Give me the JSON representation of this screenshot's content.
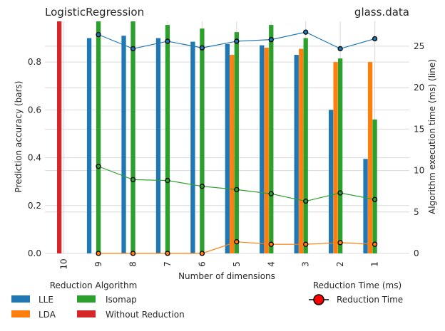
{
  "chart_data": {
    "type": "bar",
    "title_left": "LogisticRegression",
    "title_right": "glass.data",
    "xlabel": "Number of dimensions",
    "ylabel": "Prediction accuracy (bars)",
    "y2label": "Algorithm execution time (ms) (line)",
    "categories": [
      "10",
      "9",
      "8",
      "7",
      "6",
      "5",
      "4",
      "3",
      "2",
      "1"
    ],
    "ylim": [
      0,
      0.97
    ],
    "yticks": [
      "0.0",
      "0.2",
      "0.4",
      "0.6",
      "0.8"
    ],
    "yticks_values": [
      0,
      0.2,
      0.4,
      0.6,
      0.8
    ],
    "y2lim": [
      0,
      28
    ],
    "y2ticks": [
      "0",
      "5",
      "10",
      "15",
      "20",
      "25"
    ],
    "y2ticks_values": [
      0,
      5,
      10,
      15,
      20,
      25
    ],
    "grid": true,
    "series": [
      {
        "name": "LLE",
        "color": "#1f77b4",
        "values": [
          null,
          0.9,
          0.91,
          0.9,
          0.885,
          0.875,
          0.87,
          0.83,
          0.6,
          0.395
        ]
      },
      {
        "name": "LDA",
        "color": "#ff7f0e",
        "values": [
          null,
          null,
          null,
          null,
          null,
          0.83,
          0.86,
          0.855,
          0.8,
          0.8
        ]
      },
      {
        "name": "Isomap",
        "color": "#2ca02c",
        "values": [
          null,
          0.97,
          0.97,
          0.955,
          0.94,
          0.925,
          0.955,
          0.9,
          0.815,
          0.56
        ]
      },
      {
        "name": "Without Reduction",
        "color": "#d62728",
        "values": [
          0.97,
          null,
          null,
          null,
          null,
          null,
          null,
          null,
          null,
          null
        ]
      }
    ],
    "line_series": [
      {
        "color": "#1f77b4",
        "values": [
          null,
          26.4,
          24.7,
          25.6,
          24.8,
          25.6,
          25.8,
          26.7,
          24.7,
          25.9
        ]
      },
      {
        "color": "#ff7f0e",
        "values": [
          null,
          0,
          0,
          0,
          0,
          1.4,
          1.1,
          1.1,
          1.3,
          1.1
        ]
      },
      {
        "color": "#2ca02c",
        "values": [
          null,
          10.5,
          8.9,
          8.8,
          8.1,
          7.7,
          7.2,
          6.3,
          7.3,
          6.5
        ]
      }
    ],
    "legend_bars_title": "Reduction Algorithm",
    "legend_line_title": "Reduction Time (ms)",
    "legend_line_label": "Reduction Time"
  }
}
